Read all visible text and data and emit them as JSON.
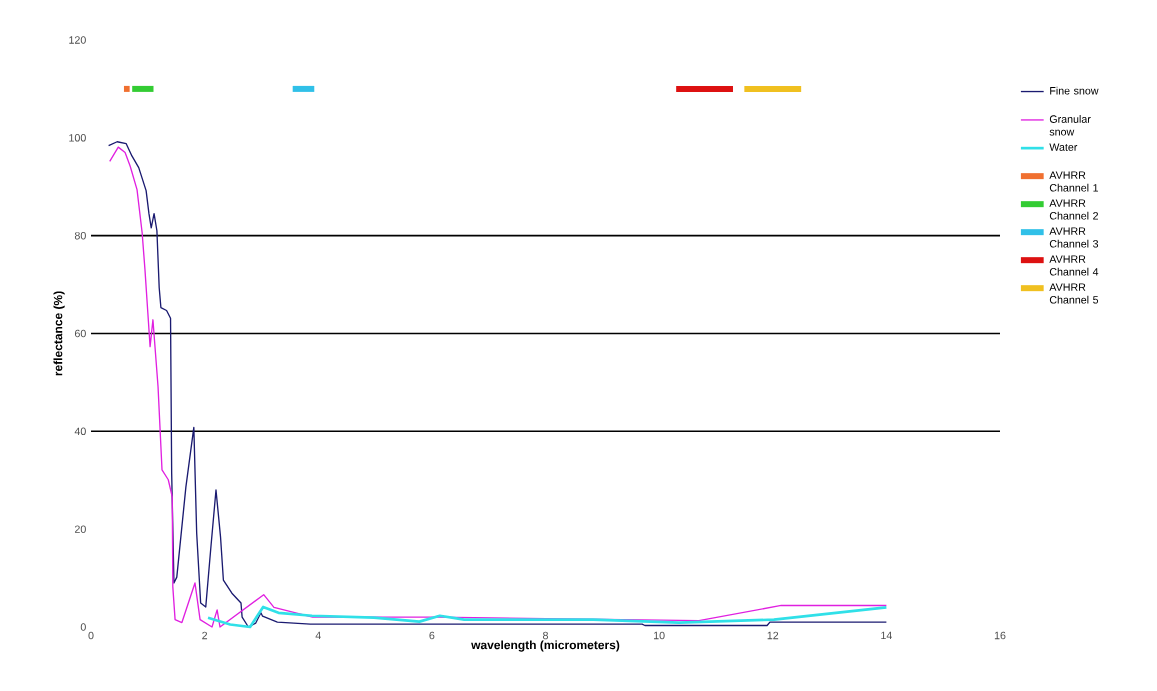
{
  "chart_data": {
    "type": "line",
    "xlabel": "wavelength (micrometers)",
    "ylabel": "reflectance (%)",
    "xlim": [
      0,
      16
    ],
    "xticks": [
      0,
      2,
      4,
      6,
      8,
      10,
      12,
      14,
      16
    ],
    "ylim": [
      0,
      120
    ],
    "yticks": [
      0,
      20,
      40,
      60,
      80,
      100,
      120
    ],
    "grid": false,
    "legend": "right",
    "ref_lines": [
      {
        "axis": "y",
        "value": 40,
        "color": "#000000"
      },
      {
        "axis": "y",
        "value": 60,
        "color": "#000000"
      },
      {
        "axis": "y",
        "value": 80,
        "color": "#000000"
      }
    ],
    "series": [
      {
        "name": "Fine snow",
        "color": "#1a1a70",
        "x": [
          0.31,
          0.46,
          0.62,
          0.72,
          0.84,
          0.97,
          1.02,
          1.06,
          1.11,
          1.16,
          1.2,
          1.23,
          1.33,
          1.4,
          1.42,
          1.46,
          1.51,
          1.67,
          1.81,
          1.86,
          1.93,
          2.02,
          2.11,
          2.2,
          2.28,
          2.33,
          2.48,
          2.64,
          2.66,
          2.77,
          2.9,
          2.99,
          3.02,
          3.28,
          3.86,
          6.5,
          9.7,
          9.75,
          11.9,
          11.95,
          14
        ],
        "values": [
          98.4,
          99.2,
          98.8,
          96.3,
          93.9,
          89.2,
          84.5,
          81.6,
          84.5,
          81,
          69.4,
          65.3,
          64.7,
          63.1,
          31.4,
          9,
          10.2,
          28.6,
          40.8,
          19.2,
          4.9,
          4.1,
          16.3,
          28,
          18.4,
          9.6,
          6.9,
          4.9,
          2,
          0,
          0.8,
          2.9,
          2.2,
          1,
          0.6,
          0.6,
          0.6,
          0.3,
          0.3,
          1,
          1
        ]
      },
      {
        "name": "Granular snow",
        "color": "#e020e0",
        "x": [
          0.33,
          0.48,
          0.6,
          0.69,
          0.81,
          0.9,
          0.95,
          1.0,
          1.04,
          1.09,
          1.18,
          1.25,
          1.36,
          1.43,
          1.44,
          1.48,
          1.6,
          1.83,
          1.92,
          2.13,
          2.22,
          2.27,
          3.04,
          3.22,
          3.9,
          6.1,
          9.0,
          10.7,
          12.15,
          14
        ],
        "values": [
          95.2,
          98.1,
          97,
          94.2,
          89.4,
          80.6,
          73,
          64.3,
          57.3,
          62.8,
          49.1,
          32.1,
          30.1,
          26.6,
          8.2,
          1.5,
          0.9,
          9,
          1.5,
          0,
          3.5,
          0,
          6.6,
          4,
          2,
          2,
          null,
          1.3,
          4.4,
          4.4
        ]
      },
      {
        "name": "Water",
        "color": "#30e0e8",
        "x": [
          2.06,
          2.45,
          2.8,
          3.03,
          3.3,
          3.89,
          4.98,
          5.78,
          6.14,
          6.57,
          8.84,
          10.35,
          12.02,
          14
        ],
        "values": [
          1.9,
          0.5,
          0,
          4.1,
          2.9,
          2.3,
          1.9,
          1.1,
          2.3,
          1.5,
          1.5,
          0.9,
          1.5,
          4
        ]
      },
      {
        "name": "AVHRR Channel 1",
        "color": "#f07030",
        "x": [
          0.58,
          0.68
        ],
        "values": [
          110,
          110
        ]
      },
      {
        "name": "AVHRR Channel 2",
        "color": "#33cc33",
        "x": [
          0.725,
          1.1
        ],
        "values": [
          110,
          110
        ]
      },
      {
        "name": "AVHRR Channel 3",
        "color": "#30c0e8",
        "x": [
          3.55,
          3.93
        ],
        "values": [
          110,
          110
        ]
      },
      {
        "name": "AVHRR Channel 4",
        "color": "#dd1111",
        "x": [
          10.3,
          11.3
        ],
        "values": [
          110,
          110
        ]
      },
      {
        "name": "AVHRR Channel 5",
        "color": "#f0c020",
        "x": [
          11.5,
          12.5
        ],
        "values": [
          110,
          110
        ]
      }
    ]
  }
}
